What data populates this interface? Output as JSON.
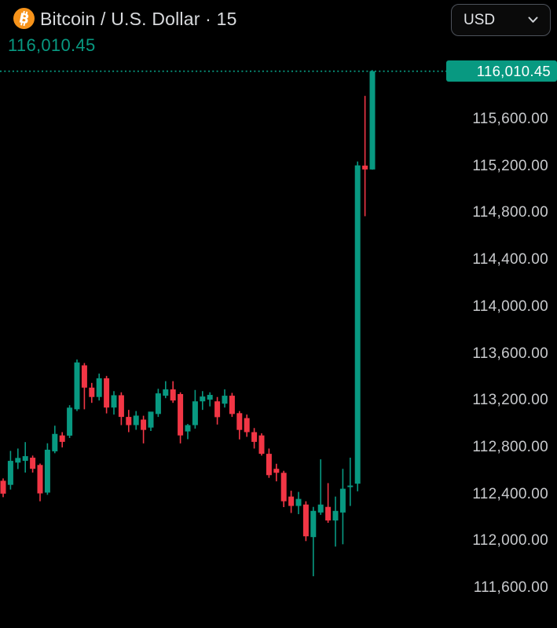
{
  "header": {
    "symbol_title": "Bitcoin / U.S. Dollar · 15",
    "last_price": "116,010.45",
    "currency_dropdown": {
      "selected": "USD"
    }
  },
  "colors": {
    "background": "#000000",
    "up": "#089981",
    "down": "#f23645",
    "title_text": "#d9dbde",
    "axis_text": "#c8cacd",
    "last_price_text": "#089981",
    "badge_bg": "#089981",
    "badge_text": "#ffffff",
    "bitcoin_orange": "#f7931a",
    "dropdown_border": "#4d525b"
  },
  "chart_data": {
    "type": "candlestick",
    "title": "Bitcoin / U.S. Dollar",
    "interval": "15",
    "quote_currency": "USD",
    "legend_position": "none",
    "grid": false,
    "current_price": {
      "value": 116010.45,
      "label": "116,010.45"
    },
    "y_axis": {
      "side": "right",
      "min": 111400,
      "max": 116420,
      "tick_values": [
        115600,
        115200,
        114800,
        114400,
        114000,
        113600,
        113200,
        112800,
        112400,
        112000,
        111600
      ],
      "tick_labels": [
        "115,600.00",
        "115,200.00",
        "114,800.00",
        "114,400.00",
        "114,000.00",
        "113,600.00",
        "113,200.00",
        "112,800.00",
        "112,400.00",
        "112,000.00",
        "111,600.00"
      ]
    },
    "candles_format": [
      "open",
      "high",
      "low",
      "close"
    ],
    "candles": [
      [
        112515,
        112535,
        112375,
        112405
      ],
      [
        112480,
        112770,
        112440,
        112685
      ],
      [
        112670,
        112790,
        112615,
        112710
      ],
      [
        112685,
        112845,
        112585,
        112725
      ],
      [
        112712,
        112730,
        112585,
        112617
      ],
      [
        112650,
        112662,
        112340,
        112407
      ],
      [
        112414,
        112835,
        112395,
        112780
      ],
      [
        112766,
        112985,
        112750,
        112915
      ],
      [
        112902,
        112930,
        112800,
        112847
      ],
      [
        112900,
        113160,
        112880,
        113139
      ],
      [
        113125,
        113550,
        113110,
        113525
      ],
      [
        113500,
        113520,
        113125,
        113310
      ],
      [
        113310,
        113350,
        113180,
        113230
      ],
      [
        113230,
        113430,
        113200,
        113390
      ],
      [
        113390,
        113410,
        113090,
        113140
      ],
      [
        113140,
        113280,
        113080,
        113245
      ],
      [
        113245,
        113270,
        112990,
        113060
      ],
      [
        113060,
        113120,
        112930,
        112990
      ],
      [
        112990,
        113110,
        112950,
        113071
      ],
      [
        113037,
        113070,
        112834,
        112949
      ],
      [
        112969,
        113100,
        112940,
        113105
      ],
      [
        113085,
        113300,
        113060,
        113261
      ],
      [
        113241,
        113365,
        113220,
        113295
      ],
      [
        113295,
        113365,
        113180,
        113200
      ],
      [
        113255,
        113270,
        112834,
        112902
      ],
      [
        112936,
        113000,
        112870,
        112990
      ],
      [
        112990,
        113290,
        112960,
        113193
      ],
      [
        113193,
        113280,
        113120,
        113234
      ],
      [
        113207,
        113270,
        113150,
        113248
      ],
      [
        113193,
        113230,
        112995,
        113058
      ],
      [
        113173,
        113295,
        113140,
        113241
      ],
      [
        113241,
        113265,
        113060,
        113085
      ],
      [
        113092,
        113110,
        112868,
        112949
      ],
      [
        113050,
        113080,
        112890,
        112930
      ],
      [
        112930,
        112965,
        112790,
        112847
      ],
      [
        112902,
        112920,
        112730,
        112745
      ],
      [
        112745,
        112790,
        112540,
        112563
      ],
      [
        112617,
        112660,
        112510,
        112583
      ],
      [
        112583,
        112600,
        112290,
        112340
      ],
      [
        112380,
        112430,
        112240,
        112300
      ],
      [
        112300,
        112420,
        112230,
        112360
      ],
      [
        112312,
        112340,
        112000,
        112041
      ],
      [
        112034,
        112292,
        111700,
        112258
      ],
      [
        112244,
        112698,
        112224,
        112312
      ],
      [
        112292,
        112495,
        112156,
        112176
      ],
      [
        112176,
        112380,
        111953,
        112258
      ],
      [
        112244,
        112617,
        111973,
        112447
      ],
      [
        112461,
        112712,
        112300,
        112474
      ],
      [
        112490,
        115240,
        112425,
        115207
      ],
      [
        115205,
        115800,
        114773,
        115172
      ],
      [
        115172,
        116020,
        115170,
        116010.45
      ]
    ]
  }
}
